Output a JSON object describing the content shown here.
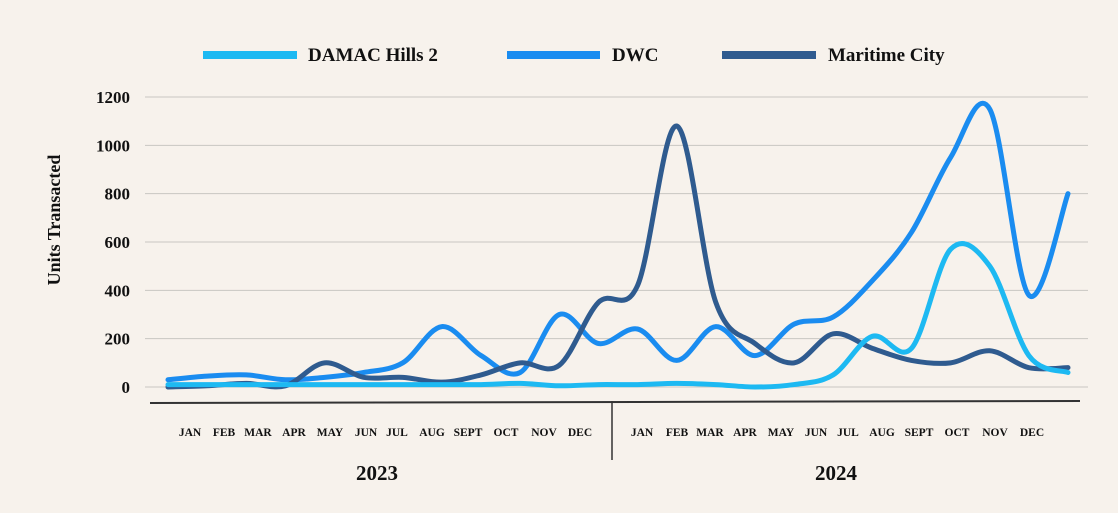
{
  "chart_data": {
    "type": "line",
    "title": "",
    "xlabel": "",
    "ylabel": "Units Transacted",
    "ylim": [
      0,
      1200
    ],
    "yticks": [
      "0",
      "200",
      "400",
      "600",
      "800",
      "1000",
      "1200"
    ],
    "grid": true,
    "legend_position": "top",
    "groups": [
      {
        "label": "2023",
        "months": [
          "JAN",
          "FEB",
          "MAR",
          "APR",
          "MAY",
          "JUN",
          "JUL",
          "AUG",
          "SEPT",
          "OCT",
          "NOV",
          "DEC"
        ]
      },
      {
        "label": "2024",
        "months": [
          "JAN",
          "FEB",
          "MAR",
          "APR",
          "MAY",
          "JUN",
          "JUL",
          "AUG",
          "SEPT",
          "OCT",
          "NOV",
          "DEC"
        ]
      }
    ],
    "series": [
      {
        "name": "DAMAC Hills 2",
        "color": "#1db9f2",
        "values": [
          10,
          10,
          10,
          10,
          10,
          10,
          10,
          10,
          10,
          15,
          5,
          10,
          10,
          15,
          10,
          0,
          10,
          50,
          210,
          160,
          570,
          500,
          130,
          60
        ]
      },
      {
        "name": "DWC",
        "color": "#1a8cf0",
        "values": [
          30,
          45,
          50,
          30,
          40,
          60,
          100,
          250,
          130,
          60,
          300,
          180,
          240,
          110,
          250,
          130,
          260,
          290,
          440,
          640,
          950,
          1150,
          380,
          800
        ]
      },
      {
        "name": "Maritime City",
        "color": "#2f5b8f",
        "values": [
          0,
          5,
          15,
          5,
          100,
          40,
          40,
          20,
          50,
          100,
          90,
          350,
          420,
          1080,
          350,
          180,
          100,
          220,
          160,
          110,
          100,
          150,
          80,
          80
        ]
      }
    ]
  }
}
